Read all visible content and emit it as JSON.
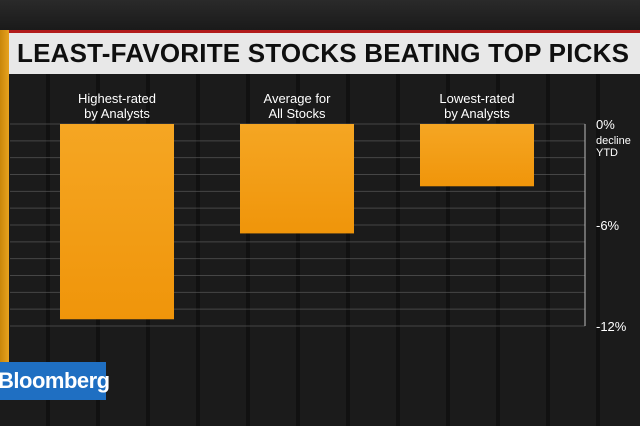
{
  "title": "LEAST-FAVORITE STOCKS BEATING TOP PICKS",
  "logo": "Bloomberg",
  "colors": {
    "bar": "#f0950a",
    "bar_top": "#f5a623",
    "title_bg": "#e8e8e8",
    "accent": "#b11b1b",
    "logo_bg": "#1f6fc2"
  },
  "chart_data": {
    "type": "bar",
    "categories": [
      [
        "Highest-rated",
        "by Analysts"
      ],
      [
        "Average for",
        "All Stocks"
      ],
      [
        "Lowest-rated",
        "by Analysts"
      ]
    ],
    "values": [
      -11.6,
      -6.5,
      -3.7
    ],
    "ylim": [
      -12,
      0
    ],
    "yticks": [
      {
        "value": 0,
        "label": "0%"
      },
      {
        "value": -6,
        "label": "-6%"
      },
      {
        "value": -12,
        "label": "-12%"
      }
    ],
    "unit_label": [
      "decline",
      "YTD"
    ],
    "grid": true,
    "axis_position": "right"
  }
}
